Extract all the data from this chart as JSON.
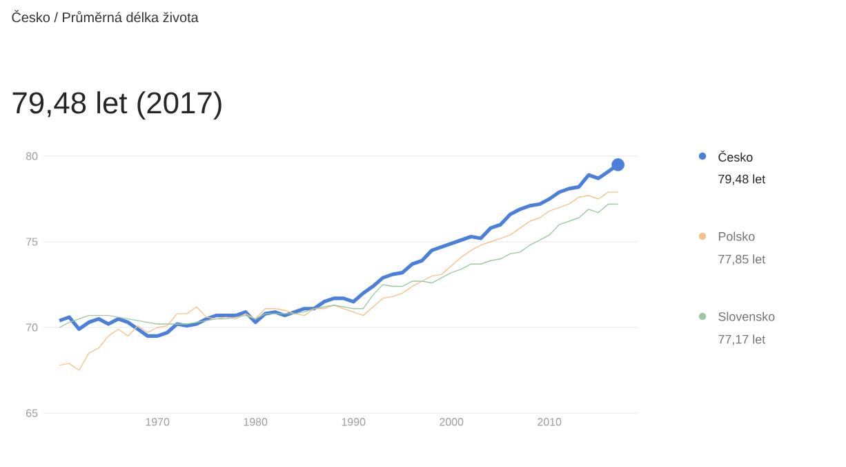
{
  "chart_data": {
    "type": "line",
    "subtitle": "Česko / Průměrná délka života",
    "title": "79,48 let (2017)",
    "x": [
      1960,
      1961,
      1962,
      1963,
      1964,
      1965,
      1966,
      1967,
      1968,
      1969,
      1970,
      1971,
      1972,
      1973,
      1974,
      1975,
      1976,
      1977,
      1978,
      1979,
      1980,
      1981,
      1982,
      1983,
      1984,
      1985,
      1986,
      1987,
      1988,
      1989,
      1990,
      1991,
      1992,
      1993,
      1994,
      1995,
      1996,
      1997,
      1998,
      1999,
      2000,
      2001,
      2002,
      2003,
      2004,
      2005,
      2006,
      2007,
      2008,
      2009,
      2010,
      2011,
      2012,
      2013,
      2014,
      2015,
      2016,
      2017
    ],
    "series": [
      {
        "name": "Česko",
        "color": "#4a7fdc",
        "values": [
          70.4,
          70.6,
          69.9,
          70.3,
          70.5,
          70.2,
          70.5,
          70.3,
          69.9,
          69.5,
          69.5,
          69.7,
          70.2,
          70.1,
          70.2,
          70.5,
          70.7,
          70.7,
          70.7,
          70.9,
          70.3,
          70.8,
          70.9,
          70.7,
          70.9,
          71.1,
          71.1,
          71.5,
          71.7,
          71.7,
          71.5,
          72.0,
          72.4,
          72.9,
          73.1,
          73.2,
          73.7,
          73.9,
          74.5,
          74.7,
          74.9,
          75.1,
          75.3,
          75.2,
          75.8,
          76.0,
          76.6,
          76.9,
          77.1,
          77.2,
          77.5,
          77.9,
          78.1,
          78.2,
          78.9,
          78.7,
          79.1,
          79.5
        ]
      },
      {
        "name": "Polsko",
        "color": "#f5c38a",
        "values": [
          67.8,
          67.9,
          67.5,
          68.5,
          68.8,
          69.5,
          69.9,
          69.5,
          70.1,
          69.7,
          70.0,
          70.1,
          70.8,
          70.8,
          71.2,
          70.6,
          70.5,
          70.6,
          70.5,
          70.8,
          70.5,
          71.1,
          71.1,
          71.0,
          70.8,
          70.7,
          71.1,
          71.1,
          71.3,
          71.1,
          70.9,
          70.7,
          71.2,
          71.7,
          71.8,
          72.0,
          72.4,
          72.7,
          73.0,
          73.1,
          73.6,
          74.1,
          74.5,
          74.8,
          75.0,
          75.2,
          75.4,
          75.8,
          76.2,
          76.4,
          76.8,
          77.0,
          77.2,
          77.6,
          77.7,
          77.5,
          77.9,
          77.9
        ]
      },
      {
        "name": "Slovensko",
        "color": "#9cc9a0",
        "values": [
          70.0,
          70.3,
          70.5,
          70.7,
          70.7,
          70.7,
          70.6,
          70.5,
          70.4,
          70.3,
          70.2,
          70.2,
          70.2,
          70.2,
          70.3,
          70.4,
          70.5,
          70.5,
          70.6,
          70.7,
          70.5,
          70.8,
          70.8,
          70.8,
          70.8,
          70.9,
          71.1,
          71.2,
          71.3,
          71.2,
          71.1,
          71.1,
          71.9,
          72.5,
          72.4,
          72.4,
          72.7,
          72.7,
          72.6,
          72.9,
          73.2,
          73.4,
          73.7,
          73.7,
          73.9,
          74.0,
          74.3,
          74.4,
          74.8,
          75.1,
          75.4,
          76.0,
          76.2,
          76.4,
          76.9,
          76.7,
          77.2,
          77.2
        ]
      },
      {
        "type": "scatter",
        "color": "#4a7fdc",
        "marker": "circle",
        "x": [
          2017
        ],
        "values": [
          79.5
        ]
      }
    ],
    "annotations": [
      "79,48 let",
      "77,85 let",
      "77,17 let"
    ],
    "xlim": [
      1958.3,
      2019
    ],
    "ylim": [
      65,
      80
    ],
    "xticks": [
      1970,
      1980,
      1990,
      2000,
      2010
    ],
    "yticks": [
      65,
      70,
      75,
      80
    ],
    "grid": "y",
    "legend": "right"
  }
}
